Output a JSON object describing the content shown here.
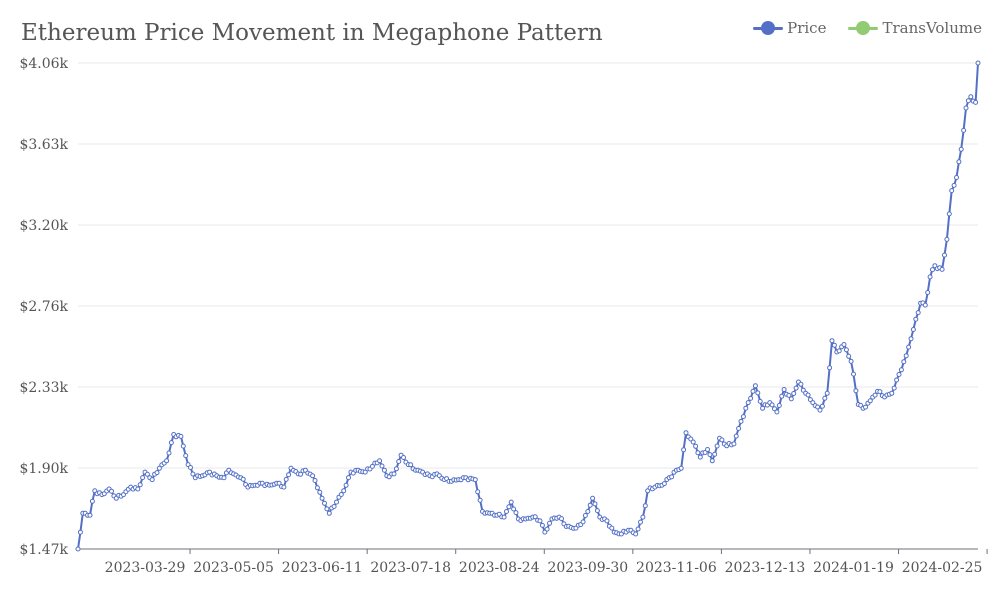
{
  "colors": {
    "price": "#5470c6",
    "transvolume": "#91cc75",
    "grid": "#e9e9e9",
    "axis": "#6e7079"
  },
  "chart_data": {
    "type": "line",
    "title": "Ethereum Price Movement in Megaphone Pattern",
    "xlabel": "",
    "ylabel": "",
    "ylim": [
      1.47,
      4.06
    ],
    "y_ticks": [
      "$1.47k",
      "$1.90k",
      "$2.33k",
      "$2.76k",
      "$3.20k",
      "$3.63k",
      "$4.06k"
    ],
    "x_ticks": [
      "2023-03-29",
      "2023-05-05",
      "2023-06-11",
      "2023-07-18",
      "2023-08-24",
      "2023-09-30",
      "2023-11-06",
      "2023-12-13",
      "2024-01-19",
      "2024-02-25"
    ],
    "x_start": "2023-03-01",
    "x_end": "2024-03-11",
    "legend": [
      "Price",
      "TransVolume"
    ],
    "legend_position": "top-right",
    "grid": true,
    "series": [
      {
        "name": "Price",
        "anchors": [
          [
            "2023-03-01",
            1.47
          ],
          [
            "2023-03-03",
            1.66
          ],
          [
            "2023-03-06",
            1.65
          ],
          [
            "2023-03-08",
            1.78
          ],
          [
            "2023-03-11",
            1.76
          ],
          [
            "2023-03-14",
            1.79
          ],
          [
            "2023-03-17",
            1.74
          ],
          [
            "2023-03-20",
            1.76
          ],
          [
            "2023-03-23",
            1.8
          ],
          [
            "2023-03-26",
            1.79
          ],
          [
            "2023-03-29",
            1.88
          ],
          [
            "2023-04-01",
            1.84
          ],
          [
            "2023-04-04",
            1.9
          ],
          [
            "2023-04-07",
            1.94
          ],
          [
            "2023-04-10",
            2.08
          ],
          [
            "2023-04-13",
            2.07
          ],
          [
            "2023-04-16",
            1.92
          ],
          [
            "2023-04-19",
            1.85
          ],
          [
            "2023-04-22",
            1.86
          ],
          [
            "2023-04-25",
            1.88
          ],
          [
            "2023-04-28",
            1.86
          ],
          [
            "2023-05-01",
            1.85
          ],
          [
            "2023-05-03",
            1.89
          ],
          [
            "2023-05-05",
            1.87
          ],
          [
            "2023-05-08",
            1.85
          ],
          [
            "2023-05-11",
            1.8
          ],
          [
            "2023-05-14",
            1.81
          ],
          [
            "2023-05-17",
            1.82
          ],
          [
            "2023-05-20",
            1.81
          ],
          [
            "2023-05-23",
            1.82
          ],
          [
            "2023-05-26",
            1.8
          ],
          [
            "2023-05-29",
            1.9
          ],
          [
            "2023-06-01",
            1.87
          ],
          [
            "2023-06-04",
            1.89
          ],
          [
            "2023-06-07",
            1.86
          ],
          [
            "2023-06-11",
            1.74
          ],
          [
            "2023-06-14",
            1.66
          ],
          [
            "2023-06-17",
            1.72
          ],
          [
            "2023-06-20",
            1.78
          ],
          [
            "2023-06-23",
            1.88
          ],
          [
            "2023-06-26",
            1.89
          ],
          [
            "2023-06-29",
            1.88
          ],
          [
            "2023-07-02",
            1.91
          ],
          [
            "2023-07-05",
            1.94
          ],
          [
            "2023-07-08",
            1.86
          ],
          [
            "2023-07-11",
            1.87
          ],
          [
            "2023-07-14",
            1.97
          ],
          [
            "2023-07-17",
            1.92
          ],
          [
            "2023-07-20",
            1.89
          ],
          [
            "2023-07-23",
            1.88
          ],
          [
            "2023-07-26",
            1.86
          ],
          [
            "2023-07-29",
            1.87
          ],
          [
            "2023-08-01",
            1.84
          ],
          [
            "2023-08-04",
            1.83
          ],
          [
            "2023-08-07",
            1.84
          ],
          [
            "2023-08-10",
            1.85
          ],
          [
            "2023-08-14",
            1.84
          ],
          [
            "2023-08-17",
            1.67
          ],
          [
            "2023-08-20",
            1.66
          ],
          [
            "2023-08-23",
            1.65
          ],
          [
            "2023-08-26",
            1.64
          ],
          [
            "2023-08-29",
            1.72
          ],
          [
            "2023-09-01",
            1.63
          ],
          [
            "2023-09-04",
            1.63
          ],
          [
            "2023-09-07",
            1.64
          ],
          [
            "2023-09-10",
            1.62
          ],
          [
            "2023-09-12",
            1.56
          ],
          [
            "2023-09-15",
            1.63
          ],
          [
            "2023-09-18",
            1.64
          ],
          [
            "2023-09-21",
            1.59
          ],
          [
            "2023-09-24",
            1.58
          ],
          [
            "2023-09-27",
            1.6
          ],
          [
            "2023-09-30",
            1.67
          ],
          [
            "2023-10-02",
            1.74
          ],
          [
            "2023-10-05",
            1.64
          ],
          [
            "2023-10-08",
            1.62
          ],
          [
            "2023-10-11",
            1.56
          ],
          [
            "2023-10-14",
            1.55
          ],
          [
            "2023-10-17",
            1.57
          ],
          [
            "2023-10-20",
            1.55
          ],
          [
            "2023-10-23",
            1.64
          ],
          [
            "2023-10-25",
            1.78
          ],
          [
            "2023-10-28",
            1.8
          ],
          [
            "2023-10-31",
            1.81
          ],
          [
            "2023-11-03",
            1.85
          ],
          [
            "2023-11-06",
            1.89
          ],
          [
            "2023-11-08",
            1.9
          ],
          [
            "2023-11-10",
            2.09
          ],
          [
            "2023-11-13",
            2.04
          ],
          [
            "2023-11-16",
            1.96
          ],
          [
            "2023-11-19",
            2.0
          ],
          [
            "2023-11-21",
            1.94
          ],
          [
            "2023-11-24",
            2.06
          ],
          [
            "2023-11-27",
            2.02
          ],
          [
            "2023-11-30",
            2.03
          ],
          [
            "2023-12-03",
            2.15
          ],
          [
            "2023-12-06",
            2.25
          ],
          [
            "2023-12-09",
            2.34
          ],
          [
            "2023-12-12",
            2.22
          ],
          [
            "2023-12-15",
            2.25
          ],
          [
            "2023-12-18",
            2.2
          ],
          [
            "2023-12-21",
            2.32
          ],
          [
            "2023-12-24",
            2.27
          ],
          [
            "2023-12-27",
            2.36
          ],
          [
            "2023-12-30",
            2.3
          ],
          [
            "2024-01-02",
            2.25
          ],
          [
            "2024-01-05",
            2.21
          ],
          [
            "2024-01-08",
            2.3
          ],
          [
            "2024-01-10",
            2.58
          ],
          [
            "2024-01-12",
            2.52
          ],
          [
            "2024-01-15",
            2.56
          ],
          [
            "2024-01-18",
            2.47
          ],
          [
            "2024-01-21",
            2.24
          ],
          [
            "2024-01-23",
            2.22
          ],
          [
            "2024-01-26",
            2.26
          ],
          [
            "2024-01-29",
            2.31
          ],
          [
            "2024-02-01",
            2.28
          ],
          [
            "2024-02-04",
            2.3
          ],
          [
            "2024-02-07",
            2.4
          ],
          [
            "2024-02-10",
            2.5
          ],
          [
            "2024-02-13",
            2.64
          ],
          [
            "2024-02-16",
            2.78
          ],
          [
            "2024-02-18",
            2.77
          ],
          [
            "2024-02-20",
            2.92
          ],
          [
            "2024-02-22",
            2.98
          ],
          [
            "2024-02-25",
            2.96
          ],
          [
            "2024-02-27",
            3.12
          ],
          [
            "2024-02-29",
            3.38
          ],
          [
            "2024-03-02",
            3.45
          ],
          [
            "2024-03-04",
            3.6
          ],
          [
            "2024-03-06",
            3.82
          ],
          [
            "2024-03-08",
            3.88
          ],
          [
            "2024-03-10",
            3.85
          ],
          [
            "2024-03-11",
            4.06
          ]
        ]
      },
      {
        "name": "TransVolume",
        "anchors": []
      }
    ]
  }
}
